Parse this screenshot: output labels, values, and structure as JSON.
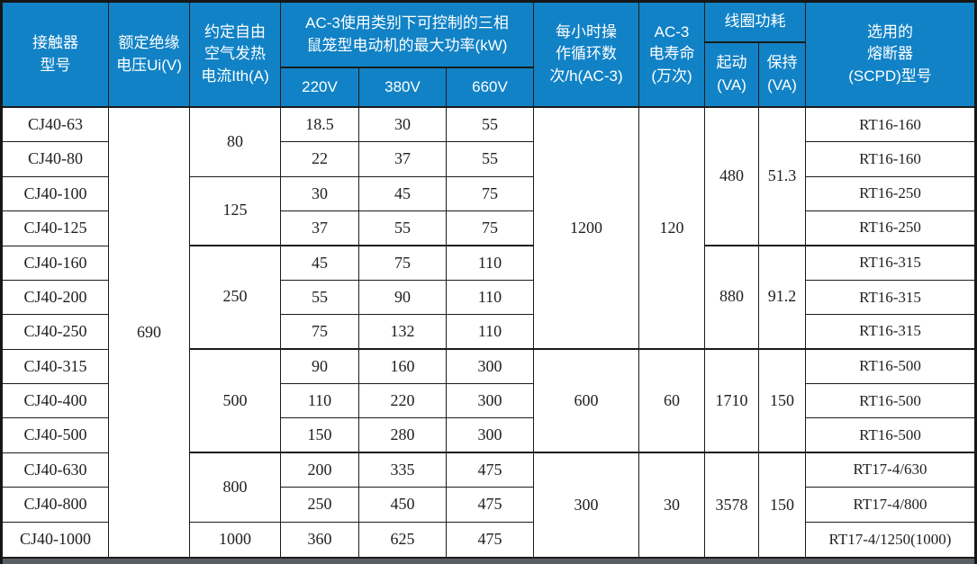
{
  "table": {
    "title_semantic": "CJ40 contactor specification table",
    "accent_color": "#1182c6",
    "header": {
      "model": "接触器\n型号",
      "ui": "额定绝缘\n电压Ui(V)",
      "ith": "约定自由\n空气发热\n电流Ith(A)",
      "kw_group": "AC-3使用类别下可控制的三相\n鼠笼型电动机的最大功率(kW)",
      "v220": "220V",
      "v380": "380V",
      "v660": "660V",
      "ops": "每小时操\n作循环数\n次/h(AC-3)",
      "life": "AC-3\n电寿命\n(万次)",
      "coil_group": "线圈功耗",
      "coil_start": "起动\n(VA)",
      "coil_hold": "保持\n(VA)",
      "fuse": "选用的\n熔断器\n(SCPD)型号"
    },
    "rows": [
      {
        "model": "CJ40-63",
        "p220": "18.5",
        "p380": "30",
        "p660": "55",
        "fuse": "RT16-160"
      },
      {
        "model": "CJ40-80",
        "p220": "22",
        "p380": "37",
        "p660": "55",
        "fuse": "RT16-160"
      },
      {
        "model": "CJ40-100",
        "p220": "30",
        "p380": "45",
        "p660": "75",
        "fuse": "RT16-250"
      },
      {
        "model": "CJ40-125",
        "p220": "37",
        "p380": "55",
        "p660": "75",
        "fuse": "RT16-250"
      },
      {
        "model": "CJ40-160",
        "p220": "45",
        "p380": "75",
        "p660": "110",
        "fuse": "RT16-315"
      },
      {
        "model": "CJ40-200",
        "p220": "55",
        "p380": "90",
        "p660": "110",
        "fuse": "RT16-315"
      },
      {
        "model": "CJ40-250",
        "p220": "75",
        "p380": "132",
        "p660": "110",
        "fuse": "RT16-315"
      },
      {
        "model": "CJ40-315",
        "p220": "90",
        "p380": "160",
        "p660": "300",
        "fuse": "RT16-500"
      },
      {
        "model": "CJ40-400",
        "p220": "110",
        "p380": "220",
        "p660": "300",
        "fuse": "RT16-500"
      },
      {
        "model": "CJ40-500",
        "p220": "150",
        "p380": "280",
        "p660": "300",
        "fuse": "RT16-500"
      },
      {
        "model": "CJ40-630",
        "p220": "200",
        "p380": "335",
        "p660": "475",
        "fuse": "RT17-4/630"
      },
      {
        "model": "CJ40-800",
        "p220": "250",
        "p380": "450",
        "p660": "475",
        "fuse": "RT17-4/800"
      },
      {
        "model": "CJ40-1000",
        "p220": "360",
        "p380": "625",
        "p660": "475",
        "fuse": "RT17-4/1250(1000)"
      }
    ],
    "merged": {
      "ui": "690",
      "ith": [
        "80",
        "125",
        "250",
        "500",
        "800",
        "1000"
      ],
      "ops_per_hour": [
        "1200",
        "600",
        "300"
      ],
      "electrical_life": [
        "120",
        "60",
        "30"
      ],
      "coil_start_va": [
        "480",
        "880",
        "1710",
        "3578"
      ],
      "coil_hold_va": [
        "51.3",
        "91.2",
        "150",
        "150"
      ]
    }
  }
}
